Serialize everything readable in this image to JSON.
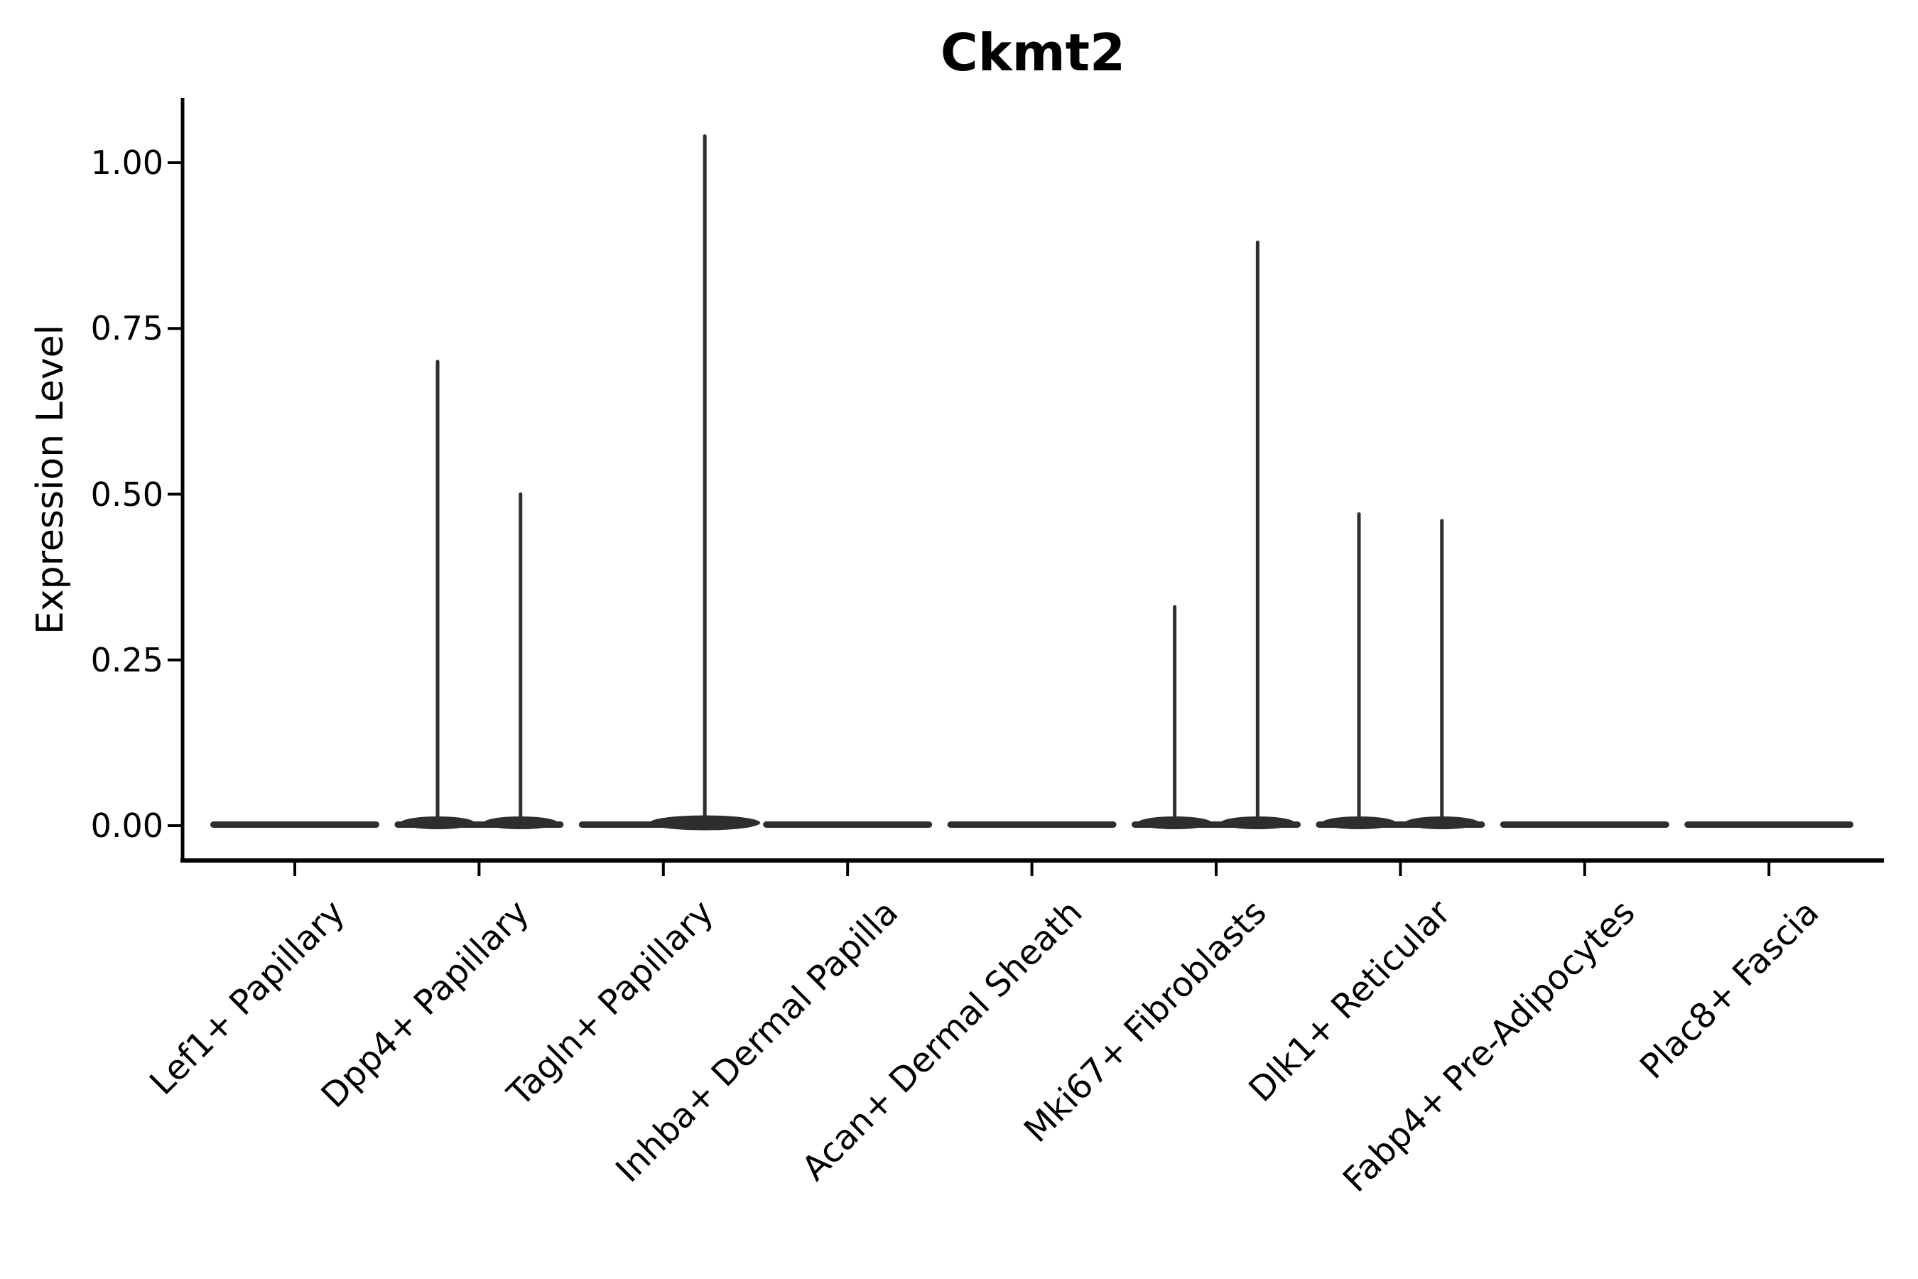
{
  "title": "Ckmt2",
  "axes": {
    "ylabel": "Expression Level",
    "xlabel": "",
    "y_tick_labels": [
      "1.00",
      "0.75",
      "0.50",
      "0.25",
      "0.00"
    ],
    "y_tick_values": [
      1.0,
      0.75,
      0.5,
      0.25,
      0.0
    ]
  },
  "colors": {
    "violin": "#2e2e2e",
    "axis": "#000000",
    "text": "#000000",
    "background": "#ffffff"
  },
  "chart_data": {
    "type": "violin",
    "title": "Ckmt2",
    "ylabel": "Expression Level",
    "xlabel": "",
    "ylim": [
      0,
      1.1
    ],
    "grid": false,
    "legend": null,
    "categories": [
      "Lef1+ Papillary",
      "Dpp4+ Papillary",
      "Tagln+ Papillary",
      "Inhba+ Dermal Papilla",
      "Acan+ Dermal Sheath",
      "Mki67+ Fibroblasts",
      "Dlk1+ Reticular",
      "Fabp4+ Pre-Adipocytes",
      "Plac8+ Fascia"
    ],
    "violins": [
      {
        "category": "Lef1+ Papillary",
        "baseline_value": 0.0,
        "spikes": []
      },
      {
        "category": "Dpp4+ Papillary",
        "baseline_value": 0.0,
        "spikes": [
          {
            "offset": -0.225,
            "value": 0.7
          },
          {
            "offset": 0.225,
            "value": 0.5
          }
        ]
      },
      {
        "category": "Tagln+ Papillary",
        "baseline_value": 0.0,
        "spikes": [
          {
            "offset": 0.225,
            "value": 1.04
          }
        ]
      },
      {
        "category": "Inhba+ Dermal Papilla",
        "baseline_value": 0.0,
        "spikes": []
      },
      {
        "category": "Acan+ Dermal Sheath",
        "baseline_value": 0.0,
        "spikes": []
      },
      {
        "category": "Mki67+ Fibroblasts",
        "baseline_value": 0.0,
        "spikes": [
          {
            "offset": -0.225,
            "value": 0.33
          },
          {
            "offset": 0.225,
            "value": 0.88
          }
        ]
      },
      {
        "category": "Dlk1+ Reticular",
        "baseline_value": 0.0,
        "spikes": [
          {
            "offset": -0.225,
            "value": 0.47
          },
          {
            "offset": 0.225,
            "value": 0.46
          }
        ]
      },
      {
        "category": "Fabp4+ Pre-Adipocytes",
        "baseline_value": 0.0,
        "spikes": []
      },
      {
        "category": "Plac8+ Fascia",
        "baseline_value": 0.0,
        "spikes": []
      }
    ]
  }
}
